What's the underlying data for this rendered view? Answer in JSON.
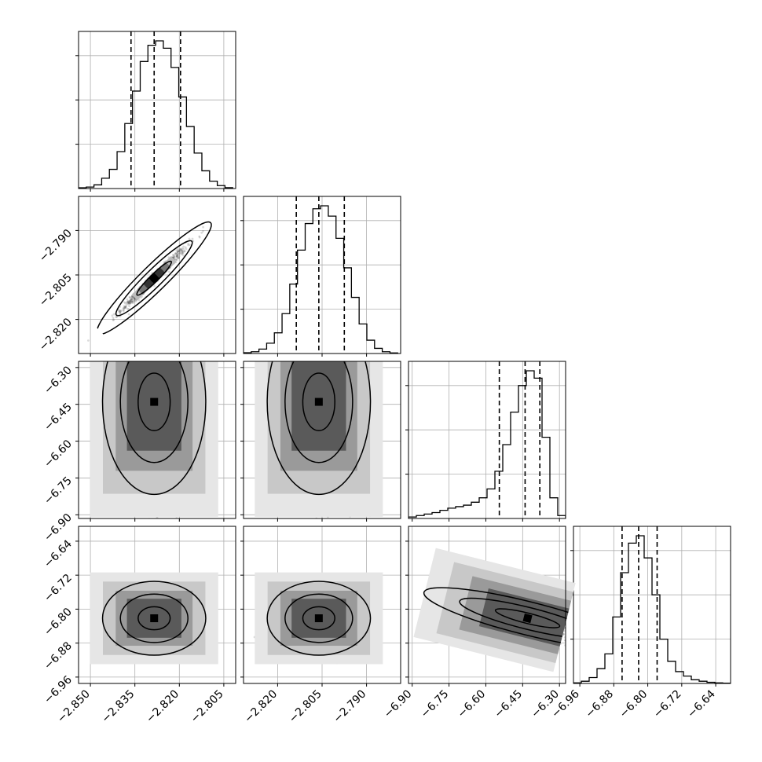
{
  "chart_data": {
    "type": "corner",
    "title": "",
    "parameters": [
      {
        "ticks": [
          "-2.850",
          "-2.835",
          "-2.820",
          "-2.805"
        ],
        "tick_values": [
          -2.85,
          -2.835,
          -2.82,
          -2.805
        ],
        "range": [
          -2.854,
          -2.801
        ]
      },
      {
        "ticks": [
          "-2.820",
          "-2.805",
          "-2.790"
        ],
        "tick_values": [
          -2.82,
          -2.805,
          -2.79
        ],
        "range": [
          -2.8315,
          -2.7785
        ]
      },
      {
        "ticks": [
          "-6.90",
          "-6.75",
          "-6.60",
          "-6.45",
          "-6.30"
        ],
        "tick_values": [
          -6.9,
          -6.75,
          -6.6,
          -6.45,
          -6.3
        ],
        "range": [
          -6.915,
          -6.275
        ]
      },
      {
        "ticks": [
          "-6.96",
          "-6.88",
          "-6.80",
          "-6.72",
          "-6.64"
        ],
        "tick_values": [
          -6.96,
          -6.88,
          -6.8,
          -6.72,
          -6.64
        ],
        "range": [
          -6.975,
          -6.605
        ]
      }
    ],
    "histograms": [
      {
        "bins": [
          -2.854,
          -2.8514,
          -2.8488,
          -2.8462,
          -2.8436,
          -2.841,
          -2.8384,
          -2.8358,
          -2.8332,
          -2.8306,
          -2.828,
          -2.8254,
          -2.8228,
          -2.8202,
          -2.8176,
          -2.815,
          -2.8124,
          -2.8098,
          -2.8072,
          -2.8046,
          -2.802
        ],
        "counts": [
          0.005,
          0.01,
          0.025,
          0.07,
          0.13,
          0.25,
          0.44,
          0.66,
          0.86,
          0.97,
          1.0,
          0.95,
          0.82,
          0.62,
          0.42,
          0.24,
          0.12,
          0.05,
          0.02,
          0.006
        ],
        "quantiles": [
          -2.8363,
          -2.8285,
          -2.8196
        ]
      },
      {
        "bins": [
          -2.8315,
          -2.8289,
          -2.8263,
          -2.8237,
          -2.8211,
          -2.8185,
          -2.8159,
          -2.8133,
          -2.8107,
          -2.8081,
          -2.8055,
          -2.8029,
          -2.8003,
          -2.7977,
          -2.7951,
          -2.7925,
          -2.7899,
          -2.7873,
          -2.7847,
          -2.7821,
          -2.7795
        ],
        "counts": [
          0.005,
          0.012,
          0.03,
          0.07,
          0.14,
          0.27,
          0.47,
          0.7,
          0.88,
          0.98,
          1.0,
          0.93,
          0.78,
          0.58,
          0.38,
          0.2,
          0.09,
          0.035,
          0.012,
          0.004
        ],
        "quantiles": [
          -2.8137,
          -2.8061,
          -2.7975
        ]
      },
      {
        "bins": [
          -6.915,
          -6.883,
          -6.851,
          -6.819,
          -6.787,
          -6.755,
          -6.723,
          -6.691,
          -6.659,
          -6.627,
          -6.595,
          -6.563,
          -6.531,
          -6.499,
          -6.467,
          -6.435,
          -6.403,
          -6.371,
          -6.339,
          -6.307,
          -6.275
        ],
        "counts": [
          0.01,
          0.02,
          0.03,
          0.04,
          0.055,
          0.07,
          0.08,
          0.09,
          0.11,
          0.14,
          0.2,
          0.32,
          0.5,
          0.72,
          0.9,
          1.0,
          0.95,
          0.55,
          0.14,
          0.02
        ],
        "quantiles": [
          -6.545,
          -6.44,
          -6.38
        ]
      },
      {
        "bins": [
          -6.975,
          -6.9565,
          -6.938,
          -6.9195,
          -6.901,
          -6.8825,
          -6.864,
          -6.8455,
          -6.827,
          -6.8085,
          -6.79,
          -6.7715,
          -6.753,
          -6.7345,
          -6.716,
          -6.6975,
          -6.679,
          -6.6605,
          -6.642,
          -6.6235,
          -6.605
        ],
        "counts": [
          0.004,
          0.015,
          0.04,
          0.1,
          0.2,
          0.45,
          0.75,
          0.95,
          1.0,
          0.85,
          0.6,
          0.3,
          0.15,
          0.08,
          0.05,
          0.025,
          0.015,
          0.008,
          0.004,
          0.002
        ],
        "quantiles": [
          -6.8605,
          -6.8215,
          -6.778
        ]
      }
    ],
    "pairs": [
      {
        "x": 0,
        "y": 1,
        "center": [
          -2.8285,
          -2.8061
        ],
        "sigma": [
          0.0055,
          0.0054
        ],
        "rho": 0.985,
        "rotation_deg": 0
      },
      {
        "x": 0,
        "y": 2,
        "center": [
          -2.8285,
          -6.44
        ],
        "sigma": [
          0.006,
          0.13
        ],
        "rho": 0.0,
        "rotation_deg": 0,
        "tail": "down"
      },
      {
        "x": 1,
        "y": 2,
        "center": [
          -2.8061,
          -6.44
        ],
        "sigma": [
          0.006,
          0.13
        ],
        "rho": 0.0,
        "rotation_deg": 0,
        "tail": "down"
      },
      {
        "x": 0,
        "y": 3,
        "center": [
          -2.8285,
          -6.8215
        ],
        "sigma": [
          0.006,
          0.03
        ],
        "rho": 0.0,
        "rotation_deg": 0
      },
      {
        "x": 1,
        "y": 3,
        "center": [
          -2.8061,
          -6.8215
        ],
        "sigma": [
          0.006,
          0.03
        ],
        "rho": 0.0,
        "rotation_deg": 0
      },
      {
        "x": 2,
        "y": 3,
        "center": [
          -6.43,
          -6.8215
        ],
        "sigma": [
          0.12,
          0.03
        ],
        "rho": -0.8,
        "rotation_deg": 0
      }
    ],
    "grid": true,
    "legend": "none"
  }
}
